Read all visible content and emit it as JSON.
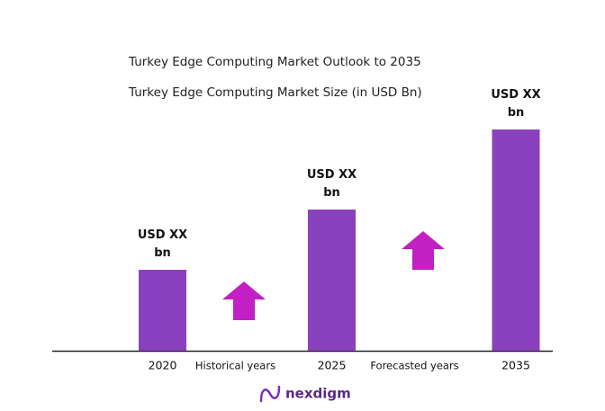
{
  "chart_data": {
    "type": "bar",
    "title": "Turkey Edge Computing Market Outlook to 2035",
    "subtitle": "Turkey Edge Computing Market Size (in USD Bn)",
    "categories": [
      "2020",
      "2025",
      "2035"
    ],
    "values": [
      90,
      157,
      246
    ],
    "value_labels": [
      "USD XX bn",
      "USD XX bn",
      "USD XX bn"
    ],
    "color": "#8a41bd",
    "annotations": [
      "Historical years",
      "Forecasted years"
    ],
    "arrow_color": "#c21fc4",
    "logo": "nexdigm"
  }
}
